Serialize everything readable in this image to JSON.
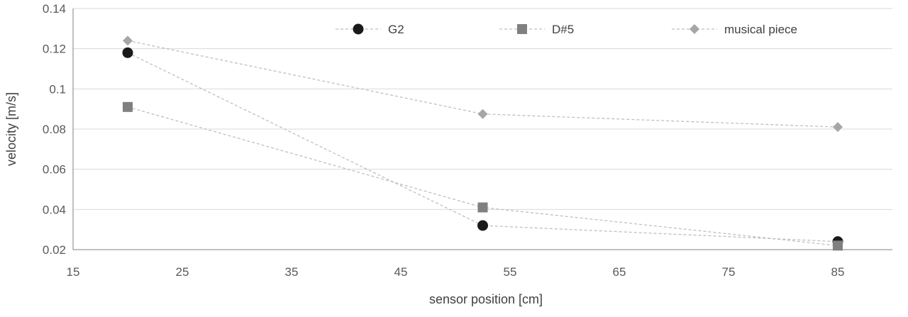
{
  "chart_data": {
    "type": "line",
    "xlabel": "sensor position [cm]",
    "ylabel": "velocity [m/s]",
    "xlim": [
      15,
      90
    ],
    "ylim": [
      0.02,
      0.14
    ],
    "xticks": [
      15,
      25,
      35,
      45,
      55,
      65,
      75,
      85
    ],
    "yticks": [
      0.02,
      0.04,
      0.06,
      0.08,
      0.1,
      0.12,
      0.14
    ],
    "ytick_labels": [
      "0.02",
      "0.04",
      "0.06",
      "0.08",
      "0.1",
      "0.12",
      "0.14"
    ],
    "grid": "horizontal",
    "legend": "top",
    "series": [
      {
        "name": "G2",
        "marker": "circle",
        "color": "#1a1a1a",
        "x": [
          20,
          52.5,
          85
        ],
        "y": [
          0.118,
          0.032,
          0.024
        ]
      },
      {
        "name": "D#5",
        "marker": "square",
        "color": "#808080",
        "x": [
          20,
          52.5,
          85
        ],
        "y": [
          0.091,
          0.041,
          0.022
        ]
      },
      {
        "name": "musical piece",
        "marker": "diamond",
        "color": "#a6a6a6",
        "x": [
          20,
          52.5,
          85
        ],
        "y": [
          0.124,
          0.0875,
          0.081
        ]
      }
    ]
  }
}
